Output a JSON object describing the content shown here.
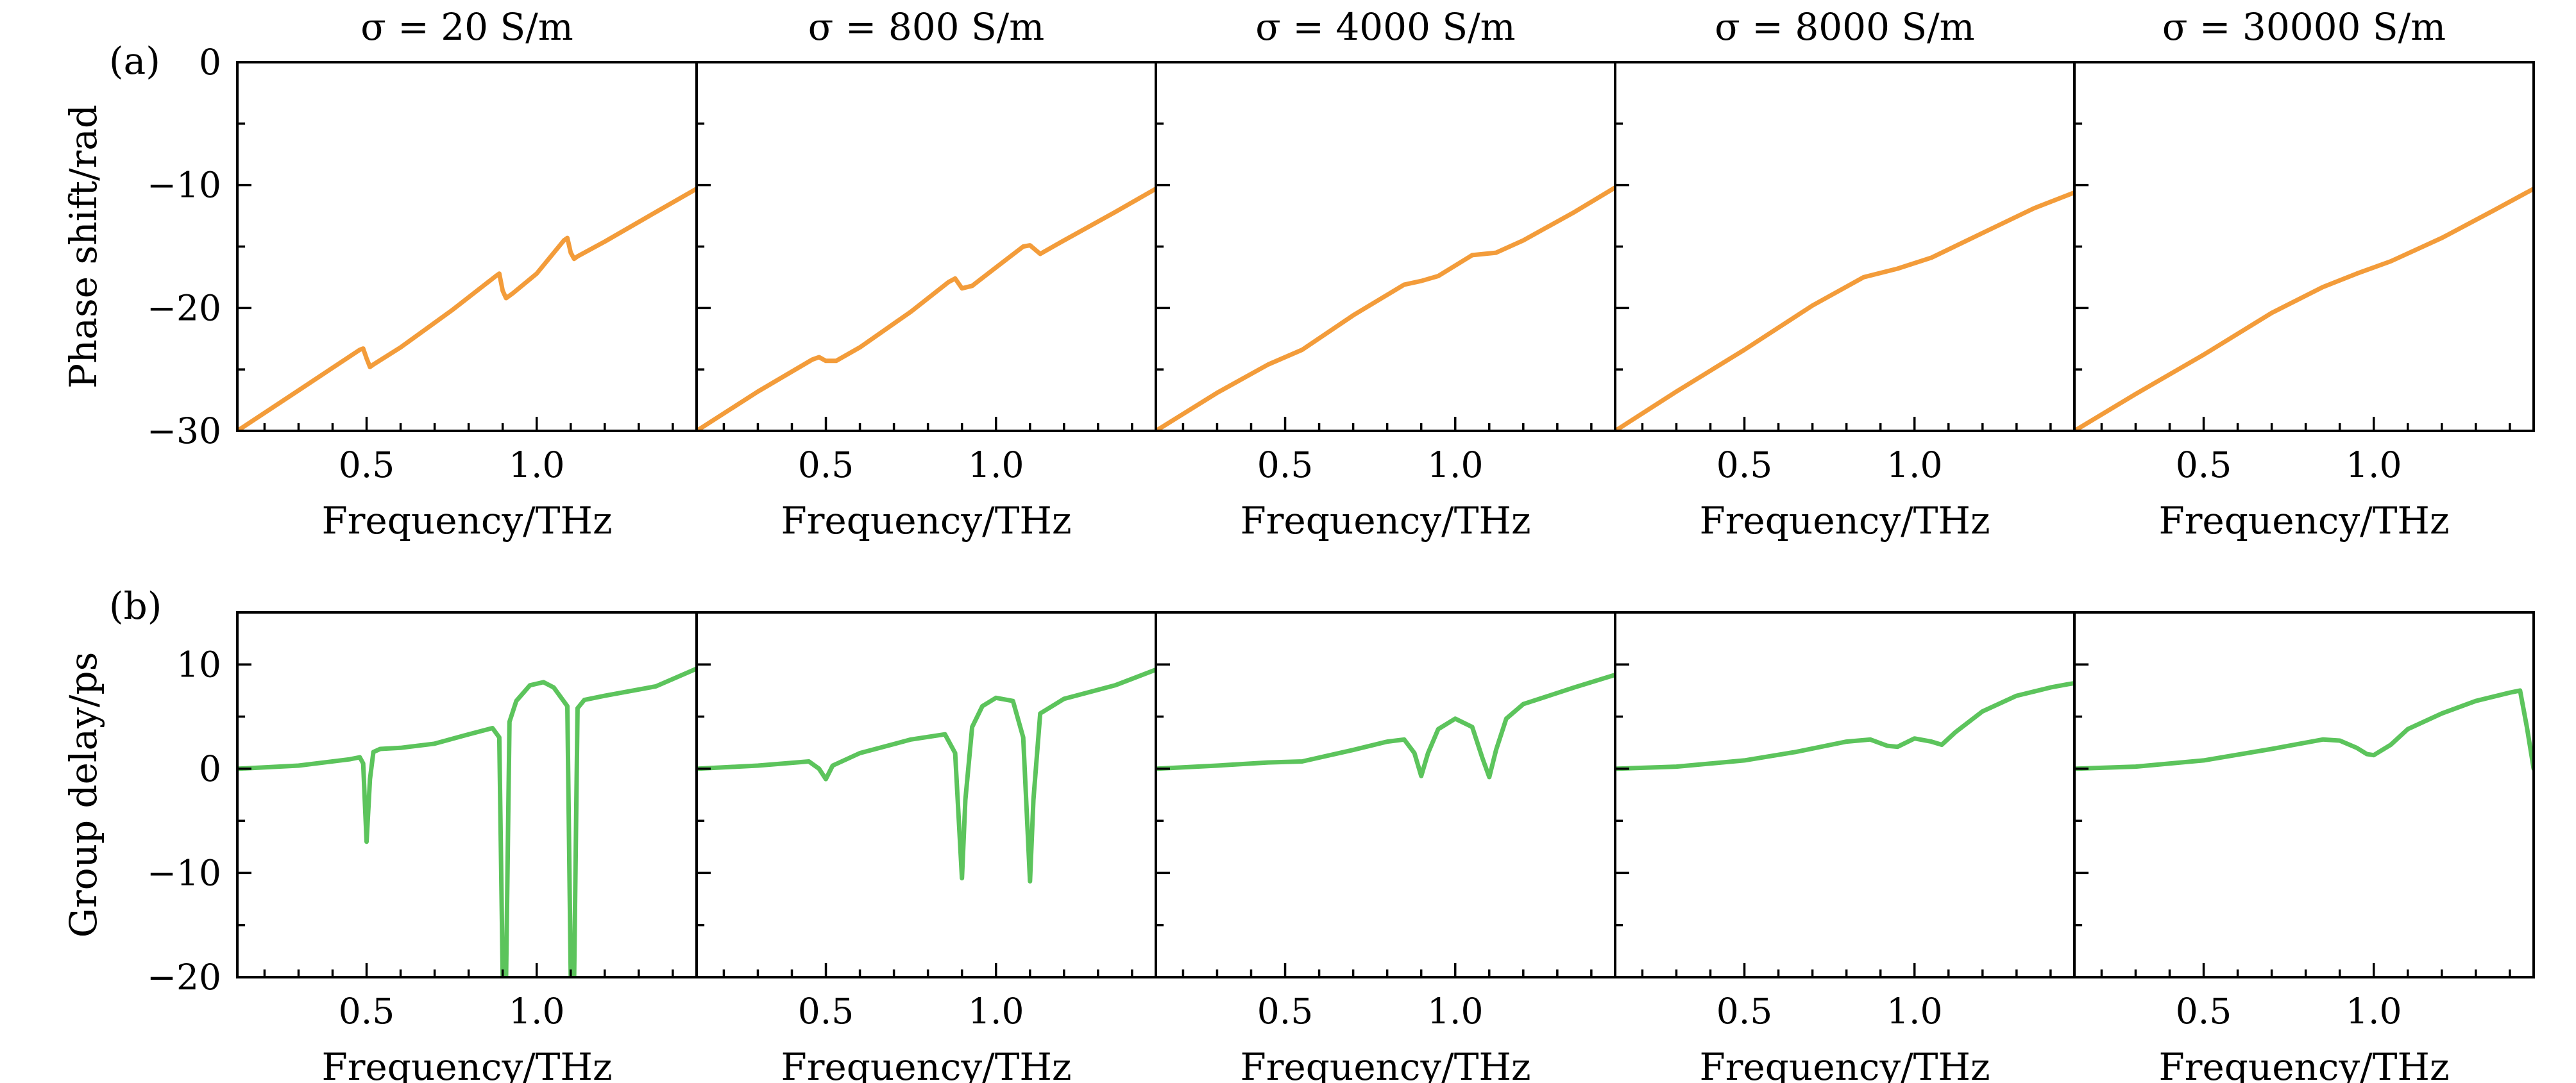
{
  "figure": {
    "panel_labels": [
      "(a)",
      "(b)"
    ],
    "columns": [
      {
        "title": "σ = 20 S/m"
      },
      {
        "title": "σ = 800 S/m"
      },
      {
        "title": "σ = 4000 S/m"
      },
      {
        "title": "σ = 8000 S/m"
      },
      {
        "title": "σ = 30000 S/m"
      }
    ],
    "colors": {
      "phase": "#f39c3a",
      "delay": "#5cc45c",
      "axes": "#000000"
    }
  },
  "chart_data": [
    {
      "type": "line",
      "panel": "(a)",
      "ylabel": "Phase shift/rad",
      "xlabel": "Frequency/THz",
      "xlim": [
        0.12,
        1.47
      ],
      "ylim": [
        -30,
        0
      ],
      "y_ticks": [
        0,
        -10,
        -20,
        -30
      ],
      "x_ticks": [
        0.5,
        1.0
      ],
      "y_tick_labels": [
        "0",
        "−10",
        "−20",
        "−30"
      ],
      "x_tick_labels": [
        "0.5",
        "1.0"
      ],
      "series": [
        {
          "panel_title": "σ = 20 S/m",
          "x": [
            0.12,
            0.3,
            0.48,
            0.49,
            0.5,
            0.51,
            0.52,
            0.6,
            0.75,
            0.88,
            0.89,
            0.9,
            0.91,
            0.93,
            1.0,
            1.08,
            1.09,
            1.1,
            1.11,
            1.12,
            1.2,
            1.35,
            1.47
          ],
          "y": [
            -30,
            -26.7,
            -23.4,
            -23.3,
            -24.1,
            -24.8,
            -24.6,
            -23.2,
            -20.2,
            -17.4,
            -17.2,
            -18.6,
            -19.2,
            -18.8,
            -17.2,
            -14.5,
            -14.3,
            -15.5,
            -16.0,
            -15.8,
            -14.6,
            -12.2,
            -10.3
          ]
        },
        {
          "panel_title": "σ = 800 S/m",
          "x": [
            0.12,
            0.3,
            0.46,
            0.48,
            0.5,
            0.53,
            0.6,
            0.75,
            0.86,
            0.88,
            0.9,
            0.93,
            1.0,
            1.08,
            1.1,
            1.13,
            1.2,
            1.35,
            1.47
          ],
          "y": [
            -30,
            -26.8,
            -24.2,
            -24.0,
            -24.3,
            -24.3,
            -23.2,
            -20.3,
            -17.9,
            -17.6,
            -18.4,
            -18.2,
            -16.7,
            -15.0,
            -14.9,
            -15.6,
            -14.5,
            -12.2,
            -10.3
          ]
        },
        {
          "panel_title": "σ = 4000 S/m",
          "x": [
            0.12,
            0.3,
            0.45,
            0.55,
            0.7,
            0.85,
            0.9,
            0.95,
            1.05,
            1.12,
            1.2,
            1.35,
            1.47
          ],
          "y": [
            -30,
            -26.9,
            -24.6,
            -23.4,
            -20.6,
            -18.1,
            -17.8,
            -17.4,
            -15.7,
            -15.5,
            -14.5,
            -12.2,
            -10.2
          ]
        },
        {
          "panel_title": "σ = 8000 S/m",
          "x": [
            0.12,
            0.3,
            0.5,
            0.7,
            0.85,
            0.95,
            1.05,
            1.2,
            1.35,
            1.47
          ],
          "y": [
            -30,
            -26.8,
            -23.4,
            -19.8,
            -17.5,
            -16.8,
            -15.9,
            -13.9,
            -11.9,
            -10.6
          ]
        },
        {
          "panel_title": "σ = 30000 S/m",
          "x": [
            0.12,
            0.3,
            0.5,
            0.7,
            0.85,
            0.95,
            1.05,
            1.2,
            1.35,
            1.47
          ],
          "y": [
            -30,
            -27.0,
            -23.8,
            -20.4,
            -18.3,
            -17.2,
            -16.2,
            -14.3,
            -12.1,
            -10.3
          ]
        }
      ]
    },
    {
      "type": "line",
      "panel": "(b)",
      "ylabel": "Group delay/ps",
      "xlabel": "Frequency/THz",
      "xlim": [
        0.12,
        1.47
      ],
      "ylim": [
        -20,
        15
      ],
      "y_ticks": [
        10,
        0,
        -10,
        -20
      ],
      "x_ticks": [
        0.5,
        1.0
      ],
      "y_tick_labels": [
        "10",
        "0",
        "−10",
        "−20"
      ],
      "x_tick_labels": [
        "0.5",
        "1.0"
      ],
      "series": [
        {
          "panel_title": "σ = 20 S/m",
          "x": [
            0.12,
            0.3,
            0.45,
            0.48,
            0.49,
            0.5,
            0.51,
            0.52,
            0.54,
            0.6,
            0.7,
            0.8,
            0.87,
            0.89,
            0.9,
            0.91,
            0.92,
            0.94,
            0.98,
            1.02,
            1.05,
            1.09,
            1.1,
            1.11,
            1.12,
            1.14,
            1.2,
            1.35,
            1.47
          ],
          "y": [
            0,
            0.3,
            0.9,
            1.1,
            0.5,
            -7.0,
            -1.0,
            1.6,
            1.9,
            2.0,
            2.4,
            3.3,
            3.9,
            3.0,
            -20,
            -20,
            4.5,
            6.5,
            8.0,
            8.3,
            7.8,
            6.0,
            -20,
            -20,
            5.8,
            6.6,
            7.0,
            7.9,
            9.6
          ]
        },
        {
          "panel_title": "σ = 800 S/m",
          "x": [
            0.12,
            0.3,
            0.45,
            0.48,
            0.5,
            0.52,
            0.6,
            0.75,
            0.85,
            0.88,
            0.9,
            0.91,
            0.93,
            0.96,
            1.0,
            1.05,
            1.08,
            1.1,
            1.11,
            1.13,
            1.2,
            1.35,
            1.47
          ],
          "y": [
            0,
            0.3,
            0.7,
            0.0,
            -1.0,
            0.3,
            1.5,
            2.8,
            3.3,
            1.5,
            -10.5,
            -3.0,
            4.0,
            6.0,
            6.8,
            6.5,
            3.0,
            -10.8,
            -3.0,
            5.3,
            6.7,
            8.0,
            9.5
          ]
        },
        {
          "panel_title": "σ = 4000 S/m",
          "x": [
            0.12,
            0.3,
            0.45,
            0.55,
            0.7,
            0.8,
            0.85,
            0.88,
            0.9,
            0.92,
            0.95,
            1.0,
            1.05,
            1.08,
            1.1,
            1.12,
            1.15,
            1.2,
            1.35,
            1.47
          ],
          "y": [
            0,
            0.3,
            0.6,
            0.7,
            1.8,
            2.6,
            2.8,
            1.5,
            -0.7,
            1.5,
            3.8,
            4.8,
            4.0,
            1.0,
            -0.8,
            1.8,
            4.8,
            6.2,
            7.8,
            9.0
          ]
        },
        {
          "panel_title": "σ = 8000 S/m",
          "x": [
            0.12,
            0.3,
            0.5,
            0.65,
            0.8,
            0.87,
            0.92,
            0.95,
            1.0,
            1.05,
            1.08,
            1.12,
            1.2,
            1.3,
            1.4,
            1.45,
            1.47
          ],
          "y": [
            0,
            0.2,
            0.8,
            1.6,
            2.6,
            2.8,
            2.2,
            2.1,
            2.9,
            2.6,
            2.3,
            3.5,
            5.5,
            7.0,
            7.8,
            8.1,
            8.2
          ]
        },
        {
          "panel_title": "σ = 30000 S/m",
          "x": [
            0.12,
            0.3,
            0.5,
            0.7,
            0.85,
            0.9,
            0.95,
            0.98,
            1.0,
            1.05,
            1.1,
            1.2,
            1.3,
            1.4,
            1.43,
            1.45,
            1.47
          ],
          "y": [
            0,
            0.2,
            0.8,
            1.9,
            2.8,
            2.7,
            2.0,
            1.4,
            1.3,
            2.3,
            3.8,
            5.3,
            6.5,
            7.3,
            7.5,
            4.0,
            0.0
          ]
        }
      ]
    }
  ]
}
